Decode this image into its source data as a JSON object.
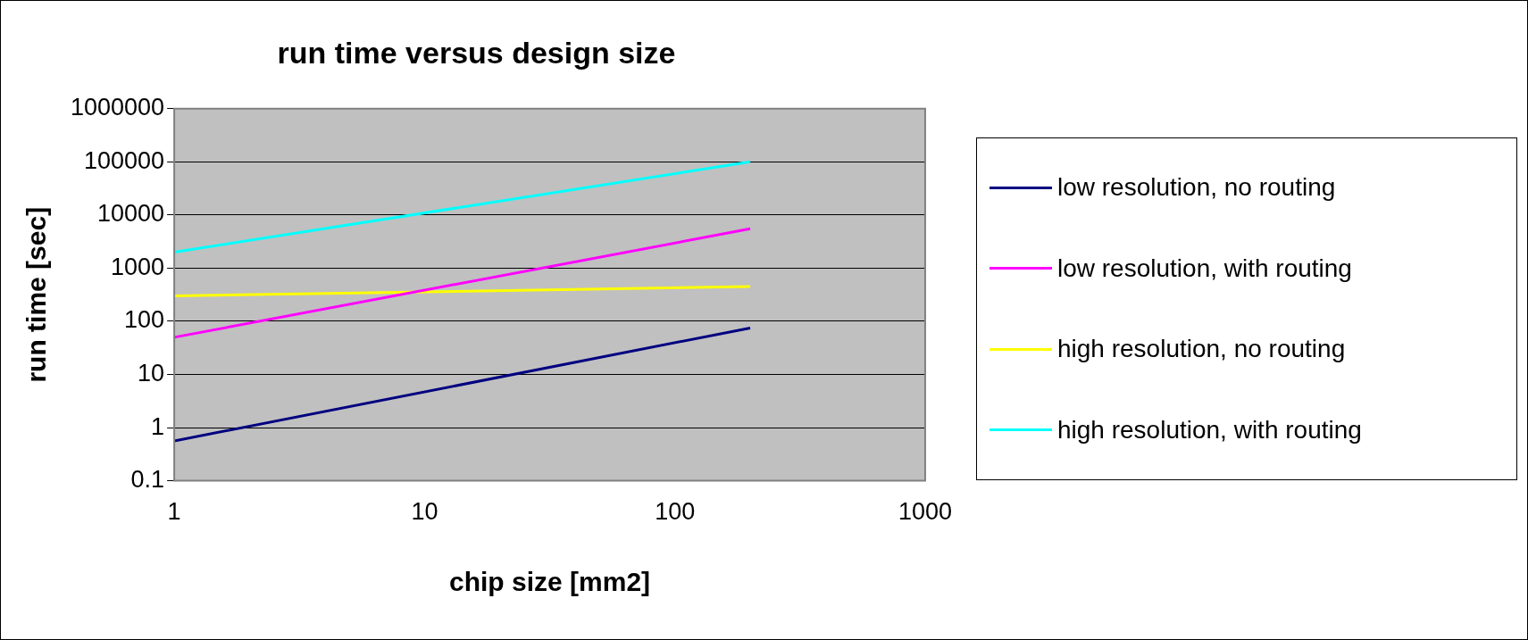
{
  "chart_data": {
    "type": "line",
    "title": "run time versus design size",
    "xlabel": "chip size [mm2]",
    "ylabel": "run time [sec]",
    "log": "xy",
    "grid": "y",
    "legend": "right",
    "marker": "none",
    "line_style": "solid",
    "xlim": [
      1,
      1000
    ],
    "xticks": [
      1,
      10,
      100,
      1000
    ],
    "ylim": [
      0.1,
      1000000
    ],
    "yticks": [
      0.1,
      1,
      10,
      100,
      1000,
      10000,
      100000,
      1000000
    ],
    "x": [
      1,
      200
    ],
    "series": [
      {
        "name": "low resolution, no routing",
        "color": "#000080",
        "values": [
          0.56,
          75
        ]
      },
      {
        "name": "low resolution, with routing",
        "color": "#ff00ff",
        "values": [
          50,
          5500
        ]
      },
      {
        "name": "high resolution, no routing",
        "color": "#ffff00",
        "values": [
          300,
          450
        ]
      },
      {
        "name": "high resolution, with routing",
        "color": "#00ffff",
        "values": [
          2000,
          100000
        ]
      }
    ]
  }
}
